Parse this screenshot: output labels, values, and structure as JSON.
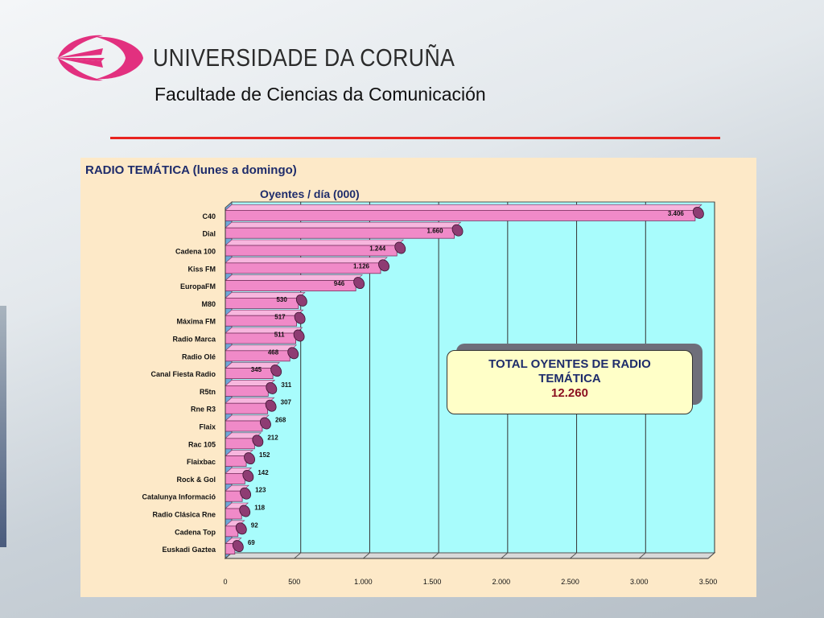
{
  "header": {
    "university": "UNIVERSIDADE DA CORUÑA",
    "faculty": "Facultade de Ciencias da Comunicación"
  },
  "colors": {
    "accent_rule": "#e8231f",
    "logo": "#e2307f",
    "bar": "#f08ac8",
    "plot_bg": "#a8fcfc",
    "panel_bg": "#fde9c8",
    "title_text": "#1e2c6b"
  },
  "chart_data": {
    "type": "bar",
    "orientation": "horizontal",
    "title": "RADIO TEMÁTICA (lunes a domingo)",
    "subtitle": "Oyentes / día  (000)",
    "categories": [
      "C40",
      "Dial",
      "Cadena 100",
      "Kiss FM",
      "EuropaFM",
      "M80",
      "Máxima FM",
      "Radio Marca",
      "Radio Olé",
      "Canal Fiesta Radio",
      "R5tn",
      "Rne R3",
      "Flaix",
      "Rac 105",
      "Flaixbac",
      "Rock & Gol",
      "Catalunya Informació",
      "Radio Clásica Rne",
      "Cadena Top",
      "Euskadi Gaztea"
    ],
    "values": [
      3406,
      1660,
      1244,
      1126,
      946,
      530,
      517,
      511,
      468,
      345,
      311,
      307,
      268,
      212,
      152,
      142,
      123,
      118,
      92,
      69
    ],
    "value_labels": [
      "3.406",
      "1.660",
      "1.244",
      "1.126",
      "946",
      "530",
      "517",
      "511",
      "468",
      "345",
      "311",
      "307",
      "268",
      "212",
      "152",
      "142",
      "123",
      "118",
      "92",
      "69"
    ],
    "xlim": [
      0,
      3500
    ],
    "x_ticks": [
      0,
      500,
      1000,
      1500,
      2000,
      2500,
      3000,
      3500
    ],
    "x_tick_labels": [
      "0",
      "500",
      "1.000",
      "1.500",
      "2.000",
      "2.500",
      "3.000",
      "3.500"
    ],
    "grid": true,
    "annotation": {
      "line1": "TOTAL OYENTES DE RADIO",
      "line2": "TEMÁTICA",
      "value": "12.260"
    }
  }
}
